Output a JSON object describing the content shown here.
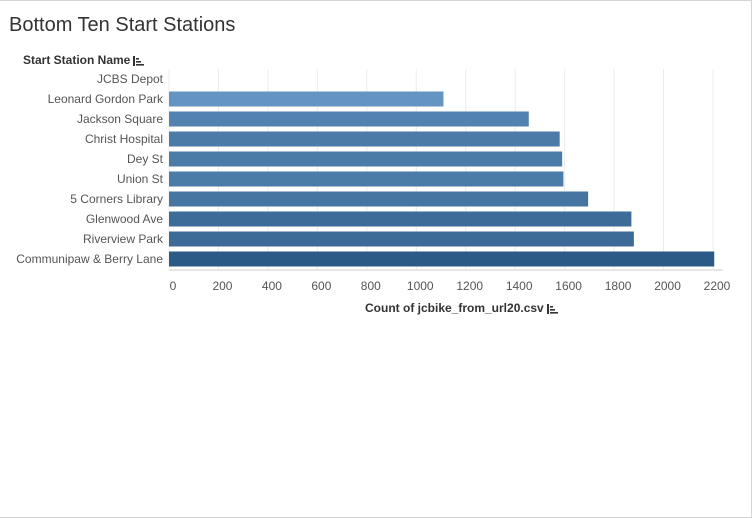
{
  "title": "Bottom Ten Start Stations",
  "y_header": "Start Station Name",
  "x_header": "Count of jcbike_from_url20.csv",
  "colors": {
    "bar_light": "#6a9bc8",
    "bar_dark": "#2c5a86",
    "grid": "#ececec",
    "text": "#555555"
  },
  "chart_data": {
    "type": "bar",
    "orientation": "horizontal",
    "categories": [
      "JCBS Depot",
      "Leonard Gordon Park",
      "Jackson Square",
      "Christ Hospital",
      "Dey St",
      "Union St",
      "5 Corners Library",
      "Glenwood Ave",
      "Riverview Park",
      "Communipaw & Berry Lane"
    ],
    "values": [
      0,
      1110,
      1455,
      1580,
      1590,
      1595,
      1695,
      1870,
      1880,
      2205
    ],
    "xlabel": "Count of jcbike_from_url20.csv",
    "ylabel": "Start Station Name",
    "xlim": [
      0,
      2200
    ],
    "xticks": [
      0,
      200,
      400,
      600,
      800,
      1000,
      1200,
      1400,
      1600,
      1800,
      2000,
      2200
    ],
    "grid": true
  }
}
